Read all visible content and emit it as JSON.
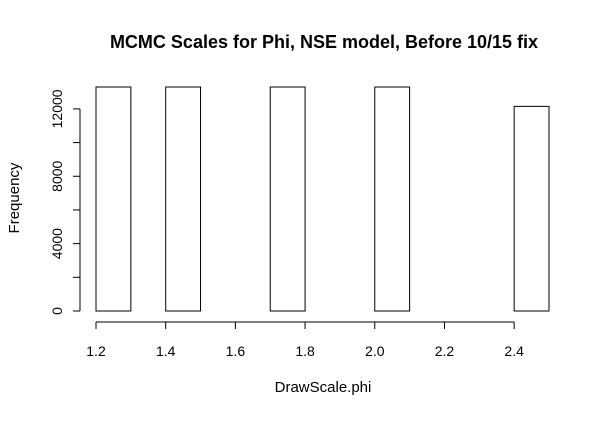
{
  "chart_data": {
    "type": "bar",
    "title": "MCMC Scales for Phi, NSE model, Before 10/15 fix",
    "xlabel": "DrawScale.phi",
    "ylabel": "Frequency",
    "xlim": [
      1.2,
      2.5
    ],
    "ylim": [
      0,
      13300
    ],
    "x_ticks": [
      1.2,
      1.4,
      1.6,
      1.8,
      2.0,
      2.2,
      2.4
    ],
    "x_tick_labels": [
      "1.2",
      "1.4",
      "1.6",
      "1.8",
      "2.0",
      "2.2",
      "2.4"
    ],
    "y_ticks": [
      0,
      4000,
      8000,
      12000
    ],
    "y_tick_labels": [
      "0",
      "4000",
      "8000",
      "12000"
    ],
    "y_minor_ticks": [
      2000,
      6000,
      10000
    ],
    "bins": [
      {
        "start": 1.2,
        "end": 1.3,
        "value": 13300
      },
      {
        "start": 1.3,
        "end": 1.4,
        "value": 0
      },
      {
        "start": 1.4,
        "end": 1.5,
        "value": 13300
      },
      {
        "start": 1.5,
        "end": 1.6,
        "value": 0
      },
      {
        "start": 1.6,
        "end": 1.7,
        "value": 0
      },
      {
        "start": 1.7,
        "end": 1.8,
        "value": 13300
      },
      {
        "start": 1.8,
        "end": 1.9,
        "value": 0
      },
      {
        "start": 1.9,
        "end": 2.0,
        "value": 0
      },
      {
        "start": 2.0,
        "end": 2.1,
        "value": 13300
      },
      {
        "start": 2.1,
        "end": 2.2,
        "value": 0
      },
      {
        "start": 2.2,
        "end": 2.3,
        "value": 0
      },
      {
        "start": 2.3,
        "end": 2.4,
        "value": 0
      },
      {
        "start": 2.4,
        "end": 2.5,
        "value": 12150
      }
    ],
    "grid": false,
    "legend": "none"
  }
}
